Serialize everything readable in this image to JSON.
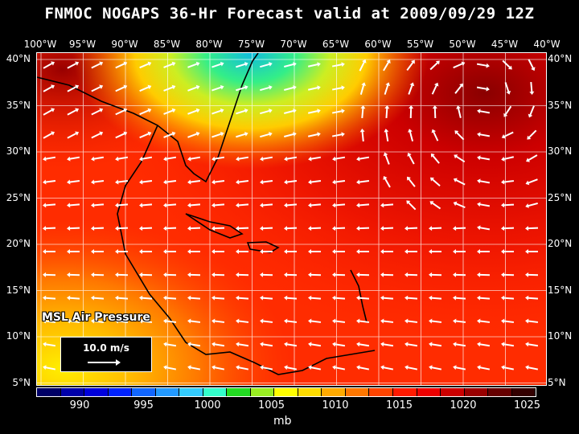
{
  "title": "FNMOC NOGAPS 36-Hr Forecast valid at 2009/09/29 12Z",
  "lon_labels": [
    "100°W",
    "95°W",
    "90°W",
    "85°W",
    "80°W",
    "75°W",
    "70°W",
    "65°W",
    "60°W",
    "55°W",
    "50°W",
    "45°W",
    "40°W"
  ],
  "lat_labels": [
    "40°N",
    "35°N",
    "30°N",
    "25°N",
    "20°N",
    "15°N",
    "10°N",
    "5°N"
  ],
  "overlay_label": "MSL Air Pressure",
  "scale_label": "10.0 m/s",
  "colorbar": {
    "colors": [
      "#000066",
      "#0000aa",
      "#0000dd",
      "#0022ff",
      "#1166ff",
      "#2299ff",
      "#33ccff",
      "#33ffcc",
      "#22dd22",
      "#99ee22",
      "#ffff00",
      "#ffdd00",
      "#ffaa00",
      "#ff7700",
      "#ff4400",
      "#ff1a00",
      "#ee0000",
      "#cc0000",
      "#990000",
      "#660000",
      "#330000"
    ],
    "labels": [
      "990",
      "995",
      "1000",
      "1005",
      "1010",
      "1015",
      "1020",
      "1025"
    ],
    "units": "mb"
  }
}
